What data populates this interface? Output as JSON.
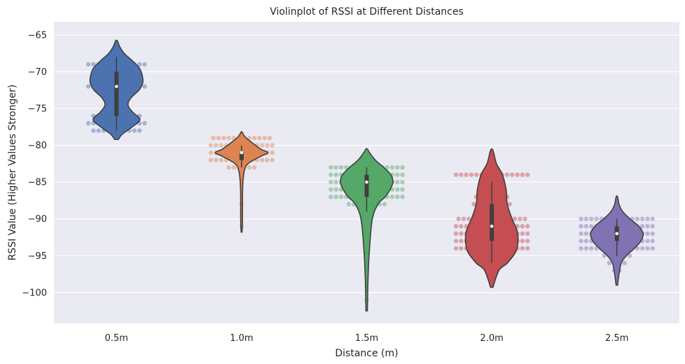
{
  "chart_data": {
    "type": "violin",
    "title": "Violinplot of RSSI at Different Distances",
    "xlabel": "Distance (m)",
    "ylabel": "RSSI Value (Higher Values Stronger)",
    "ylim": [
      -104.2,
      -63.2
    ],
    "yticks": [
      -65,
      -70,
      -75,
      -80,
      -85,
      -90,
      -95,
      -100
    ],
    "grid": true,
    "background": "#eaeaf2",
    "categories": [
      {
        "label": "0.5m",
        "color": "#4c72b0",
        "violin_extent": [
          -79.2,
          -65.8
        ],
        "density": [
          [
            -79.2,
            0.04
          ],
          [
            -78.5,
            0.12
          ],
          [
            -77.5,
            0.33
          ],
          [
            -76.5,
            0.49
          ],
          [
            -75.5,
            0.34
          ],
          [
            -74.5,
            0.24
          ],
          [
            -73.5,
            0.31
          ],
          [
            -72.5,
            0.47
          ],
          [
            -71.5,
            0.55
          ],
          [
            -70.5,
            0.54
          ],
          [
            -69.5,
            0.48
          ],
          [
            -68.5,
            0.33
          ],
          [
            -67.5,
            0.16
          ],
          [
            -66.5,
            0.06
          ],
          [
            -65.8,
            0.02
          ]
        ],
        "quartiles": [
          -76,
          -72,
          -70
        ],
        "median": -72,
        "whisker": [
          -78,
          -68
        ],
        "points": [
          [
            -69,
            12
          ],
          [
            -70,
            9
          ],
          [
            -71,
            8
          ],
          [
            -72,
            12
          ],
          [
            -73,
            6
          ],
          [
            -77,
            12
          ],
          [
            -78,
            10
          ],
          [
            -76,
            10
          ],
          [
            -68,
            3
          ]
        ]
      },
      {
        "label": "1.0m",
        "color": "#dd8452",
        "violin_extent": [
          -91.8,
          -78.2
        ],
        "density": [
          [
            -91.8,
            0.01
          ],
          [
            -90,
            0.02
          ],
          [
            -87,
            0.02
          ],
          [
            -85,
            0.03
          ],
          [
            -83.5,
            0.06
          ],
          [
            -82.5,
            0.14
          ],
          [
            -81.5,
            0.42
          ],
          [
            -81,
            0.58
          ],
          [
            -80.5,
            0.42
          ],
          [
            -79.5,
            0.2
          ],
          [
            -78.8,
            0.07
          ],
          [
            -78.2,
            0.01
          ]
        ],
        "quartiles": [
          -82,
          -81,
          -81
        ],
        "median": -81,
        "whisker": [
          -83,
          -80
        ],
        "points": [
          [
            -79,
            12
          ],
          [
            -80,
            13
          ],
          [
            -81,
            13
          ],
          [
            -82,
            13
          ],
          [
            -83,
            6
          ],
          [
            -84,
            1
          ],
          [
            -88,
            1
          ],
          [
            -91,
            1
          ]
        ]
      },
      {
        "label": "1.5m",
        "color": "#55a868",
        "violin_extent": [
          -102.5,
          -80.5
        ],
        "density": [
          [
            -102.5,
            0.01
          ],
          [
            -98,
            0.02
          ],
          [
            -94,
            0.04
          ],
          [
            -90,
            0.08
          ],
          [
            -88,
            0.16
          ],
          [
            -87,
            0.26
          ],
          [
            -86,
            0.33
          ],
          [
            -85,
            0.37
          ],
          [
            -84,
            0.34
          ],
          [
            -83,
            0.24
          ],
          [
            -82,
            0.12
          ],
          [
            -81,
            0.04
          ],
          [
            -80.5,
            0.01
          ]
        ],
        "quartiles": [
          -87,
          -85,
          -84
        ],
        "median": -85,
        "whisker": [
          -89,
          -83
        ],
        "points": [
          [
            -83,
            15
          ],
          [
            -84,
            15
          ],
          [
            -85,
            15
          ],
          [
            -86,
            15
          ],
          [
            -87,
            15
          ],
          [
            -88,
            8
          ],
          [
            -89,
            3
          ],
          [
            -90,
            2
          ],
          [
            -92,
            1
          ],
          [
            -93,
            1
          ],
          [
            -95,
            1
          ],
          [
            -97,
            1
          ],
          [
            -101,
            1
          ]
        ]
      },
      {
        "label": "2.0m",
        "color": "#c44e52",
        "violin_extent": [
          -99.3,
          -80.7
        ],
        "density": [
          [
            -99.3,
            0.01
          ],
          [
            -97,
            0.06
          ],
          [
            -96,
            0.13
          ],
          [
            -94.5,
            0.2
          ],
          [
            -93,
            0.22
          ],
          [
            -91.5,
            0.21
          ],
          [
            -90,
            0.17
          ],
          [
            -88,
            0.13
          ],
          [
            -86,
            0.12
          ],
          [
            -84,
            0.09
          ],
          [
            -82.5,
            0.04
          ],
          [
            -80.7,
            0.01
          ]
        ],
        "quartiles": [
          -93,
          -91,
          -88
        ],
        "median": -91,
        "whisker": [
          -96,
          -85
        ],
        "points": [
          [
            -84,
            15
          ],
          [
            -85,
            3
          ],
          [
            -86,
            5
          ],
          [
            -87,
            7
          ],
          [
            -88,
            8
          ],
          [
            -89,
            6
          ],
          [
            -90,
            14
          ],
          [
            -91,
            15
          ],
          [
            -92,
            15
          ],
          [
            -93,
            15
          ],
          [
            -94,
            15
          ],
          [
            -95,
            6
          ],
          [
            -96,
            3
          ],
          [
            -97,
            1
          ],
          [
            -83,
            1
          ]
        ]
      },
      {
        "label": "2.5m",
        "color": "#8172b3",
        "violin_extent": [
          -99.0,
          -87.0
        ],
        "density": [
          [
            -99,
            0.01
          ],
          [
            -97.5,
            0.03
          ],
          [
            -96,
            0.06
          ],
          [
            -95,
            0.13
          ],
          [
            -94,
            0.24
          ],
          [
            -93,
            0.33
          ],
          [
            -92,
            0.36
          ],
          [
            -91,
            0.3
          ],
          [
            -90,
            0.18
          ],
          [
            -89,
            0.08
          ],
          [
            -88,
            0.03
          ],
          [
            -87,
            0.01
          ]
        ],
        "quartiles": [
          -93,
          -92,
          -91
        ],
        "median": -92,
        "whisker": [
          -95,
          -90
        ],
        "points": [
          [
            -90,
            15
          ],
          [
            -91,
            15
          ],
          [
            -92,
            15
          ],
          [
            -93,
            15
          ],
          [
            -94,
            15
          ],
          [
            -95,
            6
          ],
          [
            -96,
            4
          ],
          [
            -97,
            2
          ],
          [
            -98,
            1
          ],
          [
            -89,
            2
          ],
          [
            -88,
            1
          ]
        ]
      }
    ]
  }
}
